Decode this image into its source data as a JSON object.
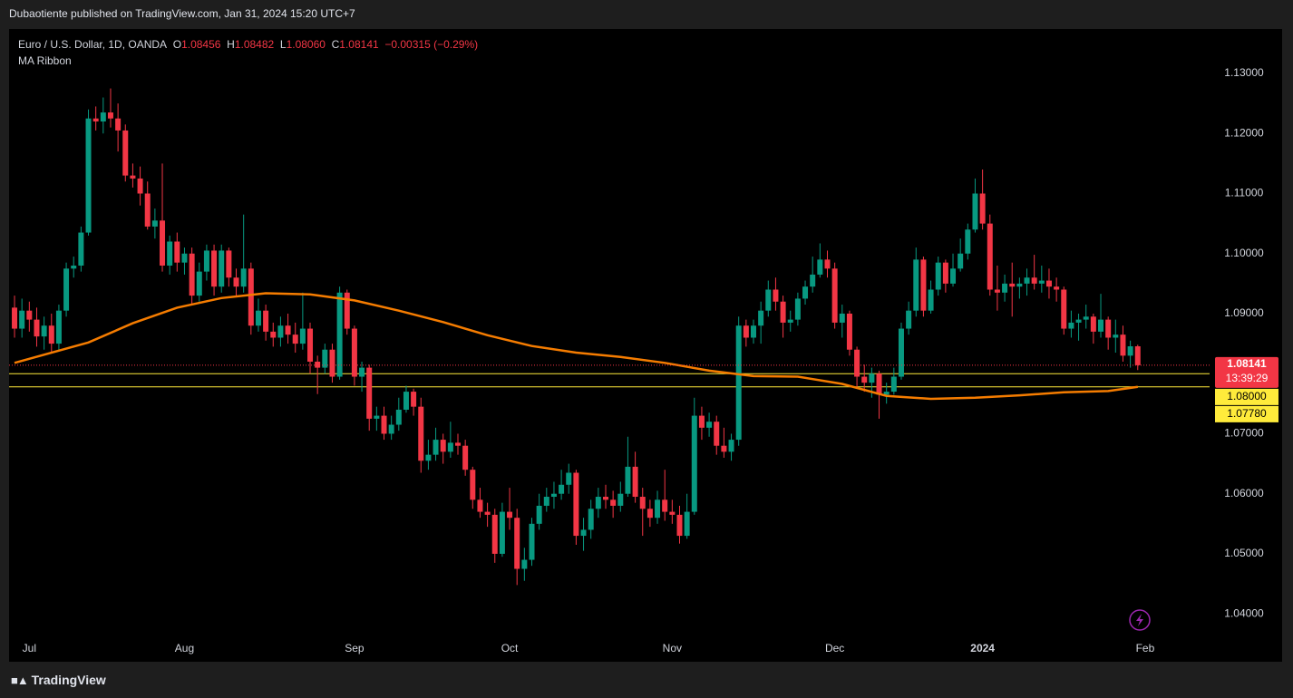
{
  "header": "Dubaotiente published on TradingView.com, Jan 31, 2024 15:20 UTC+7",
  "footer": "TradingView",
  "chart_data": {
    "type": "candlestick",
    "title": "Euro / U.S. Dollar, 1D, OANDA",
    "ohlc_labels": [
      "O",
      "H",
      "L",
      "C"
    ],
    "ohlc_values": [
      "1.08456",
      "1.08482",
      "1.08060",
      "1.08141"
    ],
    "change": "−0.00315 (−0.29%)",
    "indicator": "MA Ribbon",
    "up_color": "#089981",
    "down_color": "#f23645",
    "open": [
      1.091,
      1.0875,
      1.0905,
      1.089,
      1.0862,
      1.088,
      1.085,
      1.0905,
      1.0975,
      1.098,
      1.1035,
      1.1225,
      1.122,
      1.1235,
      1.1225,
      1.1205,
      1.113,
      1.1125,
      1.11,
      1.1045,
      1.1055,
      1.098,
      1.102,
      1.0985,
      1.1,
      1.093,
      1.097,
      1.1005,
      1.0945,
      1.1005,
      1.096,
      1.0945,
      1.0975,
      1.088,
      1.0905,
      1.087,
      1.086,
      1.088,
      1.0865,
      1.085,
      1.0875,
      1.082,
      1.081,
      1.084,
      1.0795,
      1.0935,
      1.0875,
      1.0795,
      1.081,
      1.0725,
      1.073,
      1.07,
      1.0715,
      1.074,
      1.077,
      1.0745,
      1.0655,
      1.0665,
      1.069,
      1.067,
      1.0685,
      1.068,
      1.064,
      1.059,
      1.057,
      1.0565,
      1.05,
      1.057,
      1.056,
      1.0475,
      1.049,
      1.055,
      1.058,
      1.0595,
      1.06,
      1.0615,
      1.0635,
      1.053,
      1.054,
      1.0575,
      1.0595,
      1.059,
      1.058,
      1.06,
      1.0645,
      1.0595,
      1.0575,
      1.056,
      1.059,
      1.057,
      1.0565,
      1.053,
      1.057,
      1.073,
      1.071,
      1.072,
      1.068,
      1.067,
      1.069,
      1.088,
      1.086,
      1.088,
      1.0905,
      1.094,
      1.092,
      1.0885,
      1.089,
      1.0925,
      1.0945,
      1.0965,
      1.099,
      1.0975,
      1.0885,
      1.09,
      1.084,
      1.0795,
      1.0785,
      1.08,
      1.0765,
      1.077,
      1.0795,
      1.0875,
      1.0905,
      1.099,
      1.0905,
      1.094,
      1.0985,
      1.095,
      1.0975,
      1.1,
      1.104,
      1.11,
      1.105,
      1.094,
      1.0935,
      1.095,
      1.0945,
      1.095,
      1.096,
      1.095,
      1.0955,
      1.0945,
      1.094,
      1.0875,
      1.0885,
      1.089,
      1.0895,
      1.087,
      1.089,
      1.086,
      1.0865,
      1.083,
      1.08456
    ],
    "high": [
      1.093,
      1.0925,
      1.092,
      1.091,
      1.0895,
      1.09,
      1.0915,
      1.0985,
      1.0995,
      1.1045,
      1.124,
      1.1245,
      1.126,
      1.1275,
      1.125,
      1.1215,
      1.115,
      1.1145,
      1.112,
      1.1075,
      1.115,
      1.103,
      1.1035,
      1.101,
      1.101,
      1.0985,
      1.1015,
      1.1015,
      1.1015,
      1.101,
      1.0975,
      1.1065,
      1.0985,
      1.0925,
      1.0915,
      1.0885,
      1.0895,
      1.09,
      1.0885,
      1.0935,
      1.0885,
      1.083,
      1.085,
      1.085,
      1.0945,
      1.094,
      1.088,
      1.082,
      1.0815,
      1.0745,
      1.0745,
      1.073,
      1.076,
      1.078,
      1.0775,
      1.076,
      1.069,
      1.071,
      1.07,
      1.072,
      1.07,
      1.069,
      1.0645,
      1.061,
      1.0585,
      1.0575,
      1.0585,
      1.061,
      1.0575,
      1.051,
      1.056,
      1.06,
      1.061,
      1.062,
      1.064,
      1.065,
      1.064,
      1.056,
      1.059,
      1.061,
      1.0615,
      1.0605,
      1.062,
      1.0695,
      1.067,
      1.061,
      1.059,
      1.0605,
      1.064,
      1.059,
      1.058,
      1.06,
      1.076,
      1.0745,
      1.0735,
      1.073,
      1.071,
      1.07,
      1.0895,
      1.089,
      1.089,
      1.092,
      1.0955,
      1.096,
      1.093,
      1.0905,
      1.0935,
      1.0955,
      1.0995,
      1.1017,
      1.1005,
      1.0985,
      1.0915,
      1.0905,
      1.0845,
      1.0815,
      1.081,
      1.0805,
      1.0785,
      1.081,
      1.0885,
      1.092,
      1.101,
      1.0995,
      1.0955,
      1.0995,
      1.099,
      1.1,
      1.1025,
      1.105,
      1.1125,
      1.114,
      1.1065,
      1.098,
      1.0965,
      1.0985,
      1.096,
      1.0975,
      1.0998,
      1.098,
      1.0975,
      1.096,
      1.0945,
      1.0905,
      1.09,
      1.0915,
      1.09,
      1.0933,
      1.0895,
      1.089,
      1.088,
      1.0855,
      1.08482
    ],
    "low": [
      1.086,
      1.086,
      1.087,
      1.0845,
      1.084,
      1.0835,
      1.084,
      1.0895,
      1.096,
      1.097,
      1.103,
      1.1205,
      1.12,
      1.121,
      1.117,
      1.112,
      1.111,
      1.108,
      1.104,
      1.1025,
      1.097,
      1.0965,
      1.097,
      1.0965,
      1.0915,
      1.092,
      1.0955,
      1.093,
      1.0935,
      1.0945,
      1.093,
      1.0935,
      1.0865,
      1.087,
      1.0855,
      1.0845,
      1.0845,
      1.085,
      1.0835,
      1.084,
      1.08,
      1.0766,
      1.08,
      1.0785,
      1.079,
      1.0865,
      1.078,
      1.077,
      1.0705,
      1.0705,
      1.069,
      1.069,
      1.0705,
      1.0735,
      1.073,
      1.0635,
      1.064,
      1.0655,
      1.065,
      1.066,
      1.0665,
      1.063,
      1.0575,
      1.056,
      1.0545,
      1.0485,
      1.0495,
      1.054,
      1.0448,
      1.0455,
      1.048,
      1.054,
      1.057,
      1.0575,
      1.059,
      1.06,
      1.0515,
      1.0505,
      1.0525,
      1.056,
      1.0575,
      1.056,
      1.057,
      1.0595,
      1.0585,
      1.053,
      1.0545,
      1.055,
      1.0555,
      1.055,
      1.0517,
      1.0525,
      1.0565,
      1.069,
      1.0695,
      1.0665,
      1.066,
      1.0655,
      1.068,
      1.0845,
      1.085,
      1.085,
      1.0895,
      1.0905,
      1.086,
      1.087,
      1.088,
      1.0915,
      1.0935,
      1.096,
      1.096,
      1.0875,
      1.086,
      1.083,
      1.0775,
      1.077,
      1.076,
      1.0725,
      1.075,
      1.0765,
      1.079,
      1.0865,
      1.0895,
      1.0895,
      1.09,
      1.093,
      1.0935,
      1.0945,
      1.097,
      1.099,
      1.1035,
      1.104,
      1.093,
      1.0905,
      1.092,
      1.0895,
      1.0925,
      1.093,
      1.094,
      1.0935,
      1.0925,
      1.092,
      1.0865,
      1.086,
      1.0855,
      1.0875,
      1.085,
      1.086,
      1.084,
      1.0835,
      1.082,
      1.081,
      1.0806
    ],
    "close": [
      1.0875,
      1.0905,
      1.089,
      1.0862,
      1.088,
      1.085,
      1.0905,
      1.0975,
      1.098,
      1.1035,
      1.1225,
      1.122,
      1.1235,
      1.1225,
      1.1205,
      1.113,
      1.1125,
      1.11,
      1.1045,
      1.1055,
      1.098,
      1.102,
      1.0985,
      1.1,
      1.093,
      1.097,
      1.1005,
      1.0945,
      1.1005,
      1.096,
      1.0945,
      1.0975,
      1.088,
      1.0905,
      1.087,
      1.086,
      1.088,
      1.0865,
      1.085,
      1.0875,
      1.082,
      1.081,
      1.084,
      1.0795,
      1.0935,
      1.0875,
      1.0795,
      1.081,
      1.0725,
      1.073,
      1.07,
      1.0715,
      1.074,
      1.077,
      1.0745,
      1.0655,
      1.0665,
      1.069,
      1.067,
      1.0685,
      1.068,
      1.064,
      1.059,
      1.057,
      1.0565,
      1.05,
      1.057,
      1.056,
      1.0475,
      1.049,
      1.055,
      1.058,
      1.0595,
      1.06,
      1.0615,
      1.0635,
      1.053,
      1.054,
      1.0575,
      1.0595,
      1.059,
      1.058,
      1.06,
      1.0645,
      1.0595,
      1.0575,
      1.056,
      1.059,
      1.057,
      1.0565,
      1.053,
      1.057,
      1.073,
      1.071,
      1.072,
      1.068,
      1.067,
      1.069,
      1.088,
      1.086,
      1.088,
      1.0905,
      1.094,
      1.092,
      1.0885,
      1.089,
      1.0925,
      1.0945,
      1.0965,
      1.099,
      1.0975,
      1.0885,
      1.09,
      1.084,
      1.0795,
      1.0785,
      1.08,
      1.0765,
      1.077,
      1.0795,
      1.0875,
      1.0905,
      1.099,
      1.0905,
      1.094,
      1.0985,
      1.095,
      1.0975,
      1.1,
      1.104,
      1.11,
      1.105,
      1.094,
      1.0935,
      1.095,
      1.0945,
      1.095,
      1.096,
      1.095,
      1.0955,
      1.0945,
      1.094,
      1.0875,
      1.0885,
      1.089,
      1.0895,
      1.087,
      1.089,
      1.086,
      1.0865,
      1.083,
      1.08456,
      1.08141
    ],
    "ma": {
      "color": "#f57c00",
      "x": [
        0,
        10,
        16,
        22,
        28,
        34,
        40,
        46,
        52,
        58,
        64,
        70,
        76,
        82,
        88,
        94,
        100,
        106,
        112,
        118,
        124,
        130,
        136,
        142,
        148,
        152
      ],
      "values": [
        1.0818,
        1.0852,
        1.0884,
        1.091,
        1.0926,
        1.0934,
        1.0932,
        1.0922,
        1.0905,
        1.0886,
        1.0864,
        1.0846,
        1.0835,
        1.0828,
        1.0818,
        1.0805,
        1.0796,
        1.0795,
        1.0783,
        1.0763,
        1.0758,
        1.076,
        1.0764,
        1.0769,
        1.0771,
        1.0778
      ]
    },
    "hlines": [
      {
        "value": 1.08,
        "label": "1.08000",
        "color": "#ffeb3b"
      },
      {
        "value": 1.0778,
        "label": "1.07780",
        "color": "#ffeb3b"
      }
    ],
    "countdown": "13:39:29",
    "xlim": [
      -0.74,
      161.6
    ],
    "xticks": [
      {
        "value": 2,
        "label": "Jul"
      },
      {
        "value": 23,
        "label": "Aug"
      },
      {
        "value": 46,
        "label": "Sep"
      },
      {
        "value": 67,
        "label": "Oct"
      },
      {
        "value": 89,
        "label": "Nov"
      },
      {
        "value": 111,
        "label": "Dec"
      },
      {
        "value": 131,
        "label": "2024"
      },
      {
        "value": 153,
        "label": "Feb"
      }
    ],
    "ylim": [
      1.0358,
      1.1374
    ],
    "yticks": [
      {
        "value": 1.04,
        "label": "1.04000"
      },
      {
        "value": 1.05,
        "label": "1.05000"
      },
      {
        "value": 1.06,
        "label": "1.06000"
      },
      {
        "value": 1.07,
        "label": "1.07000"
      },
      {
        "value": 1.08,
        "label": "1.08000"
      },
      {
        "value": 1.09,
        "label": "1.09000"
      },
      {
        "value": 1.1,
        "label": "1.10000"
      },
      {
        "value": 1.11,
        "label": "1.11000"
      },
      {
        "value": 1.12,
        "label": "1.12000"
      },
      {
        "value": 1.13,
        "label": "1.13000"
      }
    ],
    "grid": false
  }
}
